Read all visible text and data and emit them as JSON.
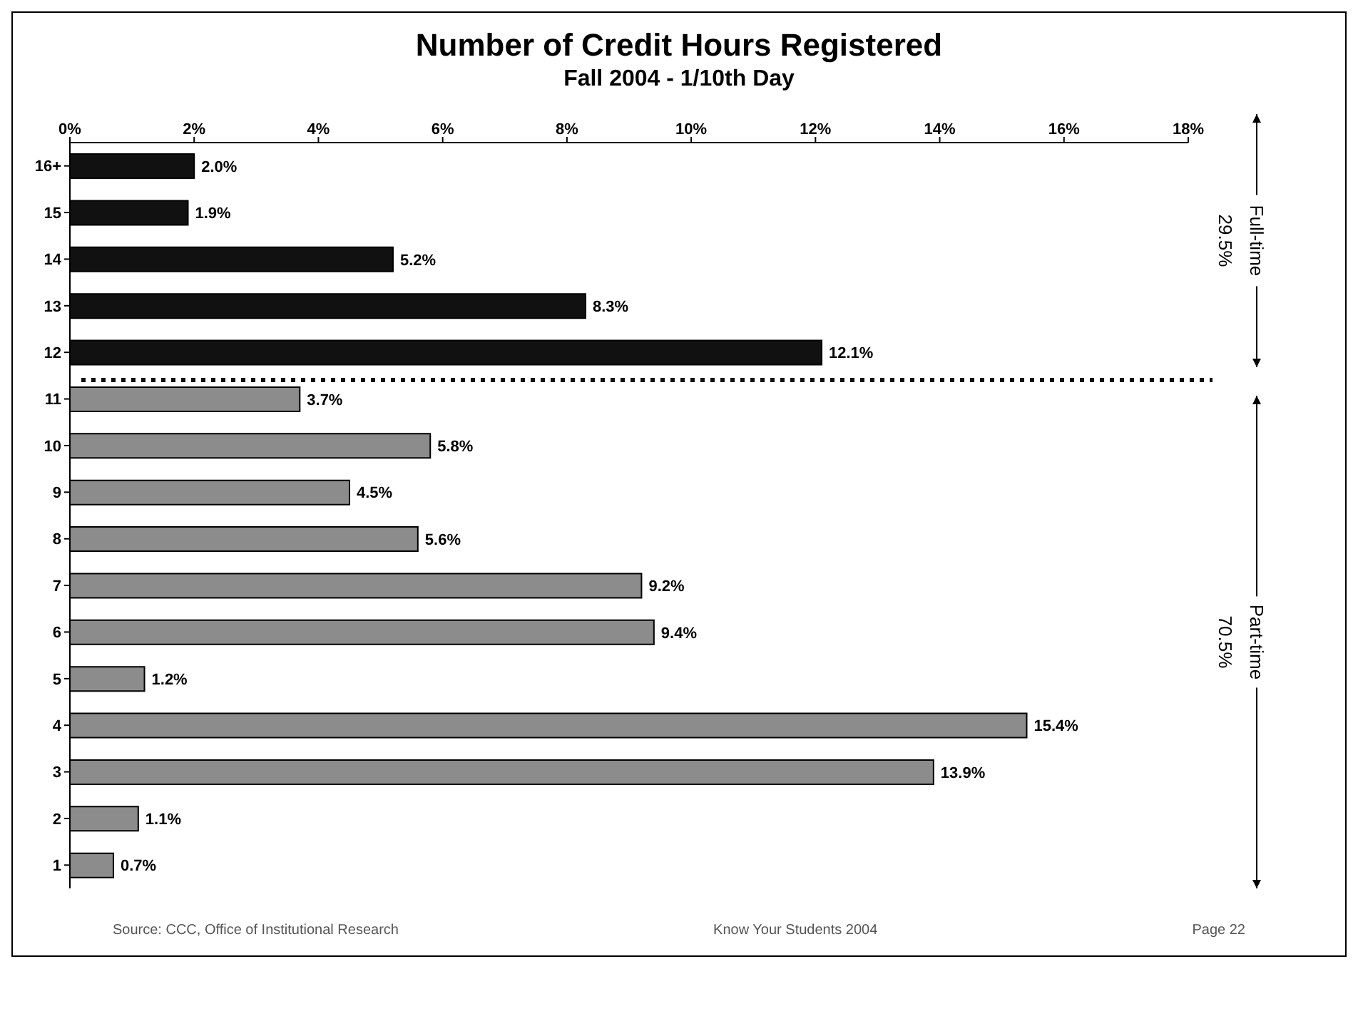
{
  "chart_data": {
    "type": "bar",
    "orientation": "horizontal",
    "title": "Number of Credit Hours Registered",
    "subtitle": "Fall 2004 - 1/10th Day",
    "categories": [
      "16+",
      "15",
      "14",
      "13",
      "12",
      "11",
      "10",
      "9",
      "8",
      "7",
      "6",
      "5",
      "4",
      "3",
      "2",
      "1"
    ],
    "values": [
      2.0,
      1.9,
      5.2,
      8.3,
      12.1,
      3.7,
      5.8,
      4.5,
      5.6,
      9.2,
      9.4,
      1.2,
      15.4,
      13.9,
      1.1,
      0.7
    ],
    "colors": [
      "#111111",
      "#111111",
      "#111111",
      "#111111",
      "#111111",
      "#8c8c8c",
      "#8c8c8c",
      "#8c8c8c",
      "#8c8c8c",
      "#8c8c8c",
      "#8c8c8c",
      "#8c8c8c",
      "#8c8c8c",
      "#8c8c8c",
      "#8c8c8c",
      "#8c8c8c"
    ],
    "value_labels": [
      "2.0%",
      "1.9%",
      "5.2%",
      "8.3%",
      "12.1%",
      "3.7%",
      "5.8%",
      "4.5%",
      "5.6%",
      "9.2%",
      "9.4%",
      "1.2%",
      "15.4%",
      "13.9%",
      "1.1%",
      "0.7%"
    ],
    "xlim": [
      0,
      18
    ],
    "xticks": [
      {
        "value": 0,
        "label": "0%"
      },
      {
        "value": 2,
        "label": "2%"
      },
      {
        "value": 4,
        "label": "4%"
      },
      {
        "value": 6,
        "label": "6%"
      },
      {
        "value": 8,
        "label": "8%"
      },
      {
        "value": 10,
        "label": "10%"
      },
      {
        "value": 12,
        "label": "12%"
      },
      {
        "value": 14,
        "label": "14%"
      },
      {
        "value": 16,
        "label": "16%"
      },
      {
        "value": 18,
        "label": "18%"
      }
    ],
    "ref_lines": [
      {
        "axis": "y",
        "value": "11",
        "line_style": "dotted",
        "color": "#111111"
      }
    ],
    "annotations": [
      "Full-time",
      "29.5%",
      "Part-time",
      "70.5%",
      "Source: CCC, Office of Institutional Research",
      "Know Your Students 2004",
      "Page 22"
    ]
  }
}
